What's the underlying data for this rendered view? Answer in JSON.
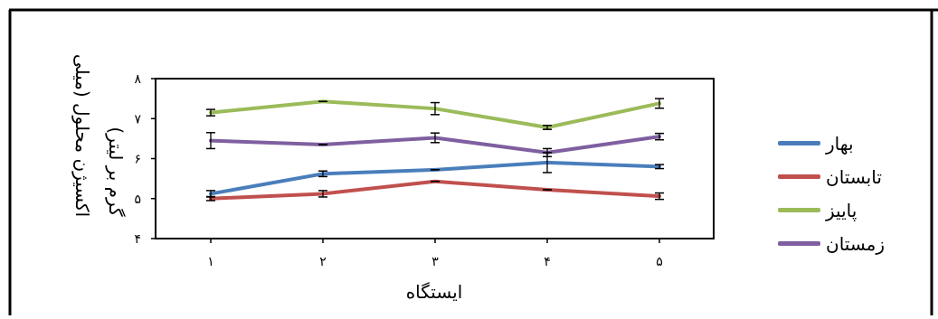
{
  "chart_data": {
    "type": "line",
    "categories": [
      "۱",
      "۲",
      "۳",
      "۴",
      "۵"
    ],
    "x": [
      1,
      2,
      3,
      4,
      5
    ],
    "xlabel": "ایستگاه",
    "ylabel_line1": "اکسیژن محلول (میلی",
    "ylabel_line2": "گرم بر لیتر)",
    "ylim": [
      4,
      8
    ],
    "yticks": [
      4,
      5,
      6,
      7,
      8
    ],
    "ytick_labels": [
      "۴",
      "۵",
      "۶",
      "۷",
      "۸"
    ],
    "grid": false,
    "legend_position": "right",
    "series": [
      {
        "name": "بهار",
        "color": "#4a7ebb",
        "values": [
          5.12,
          5.62,
          5.72,
          5.9,
          5.8
        ],
        "errors": [
          0.08,
          0.07,
          0.0,
          0.25,
          0.05
        ]
      },
      {
        "name": "تابستان",
        "color": "#c0504d",
        "values": [
          5.0,
          5.12,
          5.43,
          5.22,
          5.06
        ],
        "errors": [
          0.05,
          0.08,
          0.0,
          0.0,
          0.08
        ]
      },
      {
        "name": "پاییز",
        "color": "#9bbb59",
        "values": [
          7.15,
          7.43,
          7.25,
          6.78,
          7.38
        ],
        "errors": [
          0.08,
          0.0,
          0.15,
          0.05,
          0.12
        ]
      },
      {
        "name": "زمستان",
        "color": "#7f5fa0",
        "values": [
          6.45,
          6.35,
          6.52,
          6.15,
          6.55
        ],
        "errors": [
          0.2,
          0.0,
          0.12,
          0.1,
          0.08
        ]
      }
    ]
  }
}
